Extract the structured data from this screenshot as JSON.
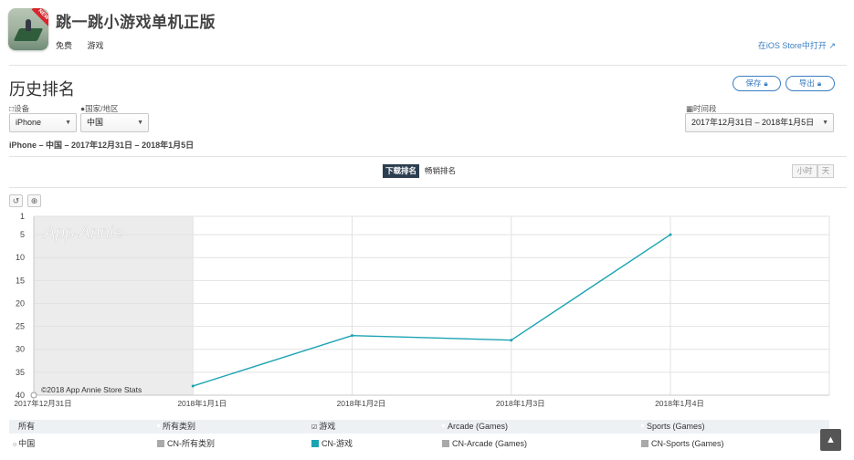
{
  "app": {
    "title": "跳一跳小游戏单机正版",
    "price": "免费",
    "category": "游戏",
    "ios_store_link": "在iOS Store中打开",
    "icon_badge": "NEW"
  },
  "section": {
    "title": "历史排名",
    "save_label": "保存",
    "export_label": "导出"
  },
  "filters": {
    "device_label": "设备",
    "device_value": "iPhone",
    "country_label": "国家/地区",
    "country_value": "中国",
    "date_label": "时间段",
    "date_value": "2017年12月31日 – 2018年1月5日"
  },
  "summary": "iPhone – 中国 – 2017年12月31日 – 2018年1月5日",
  "tabs": {
    "active": "下载排名",
    "other": "畅销排名"
  },
  "granularity": {
    "hour": "小时",
    "day": "天"
  },
  "chart_data": {
    "type": "line",
    "watermark": "App Annie",
    "credit": "©2018 App Annie Store Stats",
    "x_ticks": [
      "2017年12月31日",
      "2018年1月1日",
      "2018年1月2日",
      "2018年1月3日",
      "2018年1月4日"
    ],
    "y_ticks": [
      1,
      5,
      10,
      15,
      20,
      25,
      30,
      35,
      40
    ],
    "ylim": [
      1,
      40
    ],
    "y_reversed": true,
    "shaded_region": [
      "2017年12月31日",
      "2018年1月1日"
    ],
    "series": [
      {
        "name": "CN-游戏",
        "color": "#1ba3b3",
        "x": [
          "2018年1月1日",
          "2018年1月2日",
          "2018年1月3日",
          "2018年1月4日"
        ],
        "values": [
          38,
          27,
          28,
          5
        ]
      }
    ]
  },
  "legend": {
    "headers": [
      "所有",
      "所有类别",
      "游戏",
      "Arcade (Games)",
      "Sports (Games)"
    ],
    "row_label": "中国",
    "items": [
      {
        "label": "CN-所有类别",
        "color": "#a9a9a9"
      },
      {
        "label": "CN-游戏",
        "color": "#1ba3b3"
      },
      {
        "label": "CN-Arcade (Games)",
        "color": "#a9a9a9"
      },
      {
        "label": "CN-Sports (Games)",
        "color": "#a9a9a9"
      }
    ]
  }
}
